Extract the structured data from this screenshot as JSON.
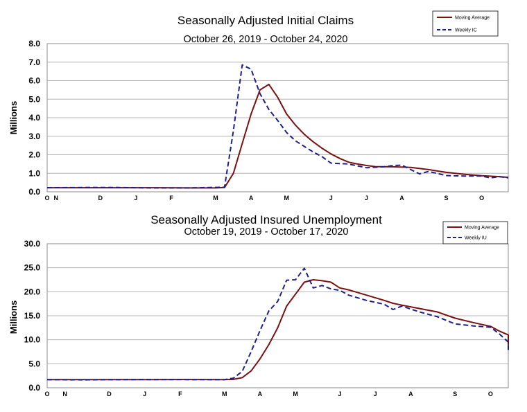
{
  "chart_data": [
    {
      "type": "line",
      "title": "Seasonally Adjusted Initial Claims",
      "subtitle": "October 26, 2019 - October 24, 2020",
      "ylabel": "Millions",
      "ylim": [
        0,
        8
      ],
      "yticks": [
        "0.0",
        "1.0",
        "2.0",
        "3.0",
        "4.0",
        "5.0",
        "6.0",
        "7.0",
        "8.0"
      ],
      "grid": true,
      "legend_position": "top-right",
      "x_range": [
        "2019-10-26",
        "2020-10-24"
      ],
      "month_ticks": [
        {
          "label": "O",
          "date": "2019-10-26"
        },
        {
          "label": "N",
          "date": "2019-11-02"
        },
        {
          "label": "D",
          "date": "2019-12-07"
        },
        {
          "label": "J",
          "date": "2020-01-04"
        },
        {
          "label": "F",
          "date": "2020-02-01"
        },
        {
          "label": "M",
          "date": "2020-03-07"
        },
        {
          "label": "A",
          "date": "2020-04-04"
        },
        {
          "label": "M",
          "date": "2020-05-02"
        },
        {
          "label": "J",
          "date": "2020-06-06"
        },
        {
          "label": "J",
          "date": "2020-07-04"
        },
        {
          "label": "A",
          "date": "2020-08-01"
        },
        {
          "label": "S",
          "date": "2020-09-05"
        },
        {
          "label": "O",
          "date": "2020-10-03"
        }
      ],
      "series": [
        {
          "name": "Moving Average",
          "color": "#7b1010",
          "style": "solid",
          "points": [
            [
              "2019-10-26",
              0.22
            ],
            [
              "2019-11-23",
              0.22
            ],
            [
              "2019-12-21",
              0.22
            ],
            [
              "2020-01-18",
              0.22
            ],
            [
              "2020-02-15",
              0.21
            ],
            [
              "2020-03-07",
              0.21
            ],
            [
              "2020-03-14",
              0.23
            ],
            [
              "2020-03-21",
              1.0
            ],
            [
              "2020-03-28",
              2.6
            ],
            [
              "2020-04-04",
              4.2
            ],
            [
              "2020-04-11",
              5.5
            ],
            [
              "2020-04-18",
              5.8
            ],
            [
              "2020-04-25",
              5.1
            ],
            [
              "2020-05-02",
              4.2
            ],
            [
              "2020-05-09",
              3.6
            ],
            [
              "2020-05-16",
              3.1
            ],
            [
              "2020-05-23",
              2.7
            ],
            [
              "2020-05-30",
              2.35
            ],
            [
              "2020-06-06",
              2.05
            ],
            [
              "2020-06-13",
              1.8
            ],
            [
              "2020-06-20",
              1.6
            ],
            [
              "2020-06-27",
              1.5
            ],
            [
              "2020-07-04",
              1.42
            ],
            [
              "2020-07-11",
              1.36
            ],
            [
              "2020-07-25",
              1.35
            ],
            [
              "2020-08-08",
              1.32
            ],
            [
              "2020-08-22",
              1.2
            ],
            [
              "2020-09-05",
              1.05
            ],
            [
              "2020-09-19",
              0.95
            ],
            [
              "2020-10-03",
              0.87
            ],
            [
              "2020-10-17",
              0.82
            ],
            [
              "2020-10-24",
              0.78
            ]
          ]
        },
        {
          "name": "Weekly IC",
          "color": "#1a1f8c",
          "style": "dashed",
          "points": [
            [
              "2019-10-26",
              0.22
            ],
            [
              "2019-11-23",
              0.23
            ],
            [
              "2019-12-21",
              0.23
            ],
            [
              "2020-01-18",
              0.21
            ],
            [
              "2020-02-15",
              0.21
            ],
            [
              "2020-03-14",
              0.25
            ],
            [
              "2020-03-21",
              3.3
            ],
            [
              "2020-03-28",
              6.85
            ],
            [
              "2020-04-04",
              6.62
            ],
            [
              "2020-04-11",
              5.3
            ],
            [
              "2020-04-18",
              4.45
            ],
            [
              "2020-04-25",
              3.85
            ],
            [
              "2020-05-02",
              3.2
            ],
            [
              "2020-05-09",
              2.75
            ],
            [
              "2020-05-16",
              2.45
            ],
            [
              "2020-05-23",
              2.15
            ],
            [
              "2020-05-30",
              1.9
            ],
            [
              "2020-06-06",
              1.55
            ],
            [
              "2020-06-20",
              1.5
            ],
            [
              "2020-07-04",
              1.3
            ],
            [
              "2020-07-18",
              1.35
            ],
            [
              "2020-07-25",
              1.42
            ],
            [
              "2020-08-01",
              1.44
            ],
            [
              "2020-08-08",
              1.2
            ],
            [
              "2020-08-15",
              0.97
            ],
            [
              "2020-08-22",
              1.1
            ],
            [
              "2020-09-05",
              0.88
            ],
            [
              "2020-09-19",
              0.85
            ],
            [
              "2020-10-03",
              0.85
            ],
            [
              "2020-10-10",
              0.75
            ],
            [
              "2020-10-17",
              0.82
            ],
            [
              "2020-10-24",
              0.75
            ]
          ]
        }
      ]
    },
    {
      "type": "line",
      "title": "Seasonally Adjusted Insured Unemployment",
      "subtitle": "October 19, 2019 - October 17, 2020",
      "ylabel": "Millions",
      "ylim": [
        0,
        30
      ],
      "yticks": [
        "0.0",
        "5.0",
        "10.0",
        "15.0",
        "20.0",
        "25.0",
        "30.0"
      ],
      "grid": true,
      "legend_position": "top-right",
      "x_range": [
        "2019-10-19",
        "2020-10-17"
      ],
      "month_ticks": [
        {
          "label": "O",
          "date": "2019-10-19"
        },
        {
          "label": "N",
          "date": "2019-11-02"
        },
        {
          "label": "D",
          "date": "2019-12-07"
        },
        {
          "label": "J",
          "date": "2020-01-04"
        },
        {
          "label": "F",
          "date": "2020-02-01"
        },
        {
          "label": "M",
          "date": "2020-03-07"
        },
        {
          "label": "A",
          "date": "2020-04-04"
        },
        {
          "label": "M",
          "date": "2020-05-02"
        },
        {
          "label": "J",
          "date": "2020-06-06"
        },
        {
          "label": "J",
          "date": "2020-07-04"
        },
        {
          "label": "A",
          "date": "2020-08-01"
        },
        {
          "label": "S",
          "date": "2020-09-05"
        },
        {
          "label": "O",
          "date": "2020-10-03"
        }
      ],
      "series": [
        {
          "name": "Moving Average",
          "color": "#7b1010",
          "style": "solid",
          "points": [
            [
              "2019-10-19",
              1.7
            ],
            [
              "2019-11-16",
              1.7
            ],
            [
              "2019-12-14",
              1.7
            ],
            [
              "2020-01-11",
              1.7
            ],
            [
              "2020-02-08",
              1.72
            ],
            [
              "2020-03-07",
              1.7
            ],
            [
              "2020-03-14",
              1.75
            ],
            [
              "2020-03-21",
              2.1
            ],
            [
              "2020-03-28",
              3.5
            ],
            [
              "2020-04-04",
              6.0
            ],
            [
              "2020-04-11",
              9.0
            ],
            [
              "2020-04-18",
              12.5
            ],
            [
              "2020-04-25",
              17.0
            ],
            [
              "2020-05-02",
              19.5
            ],
            [
              "2020-05-09",
              22.0
            ],
            [
              "2020-05-16",
              22.5
            ],
            [
              "2020-05-23",
              22.3
            ],
            [
              "2020-05-30",
              22.0
            ],
            [
              "2020-06-06",
              20.8
            ],
            [
              "2020-06-13",
              20.4
            ],
            [
              "2020-06-27",
              19.3
            ],
            [
              "2020-07-11",
              18.2
            ],
            [
              "2020-07-18",
              17.6
            ],
            [
              "2020-07-25",
              17.2
            ],
            [
              "2020-08-08",
              16.5
            ],
            [
              "2020-08-22",
              15.8
            ],
            [
              "2020-09-05",
              14.5
            ],
            [
              "2020-09-19",
              13.6
            ],
            [
              "2020-10-03",
              12.8
            ],
            [
              "2020-10-10",
              11.8
            ],
            [
              "2020-10-17",
              11.0
            ],
            [
              "2020-10-24",
              10.0
            ],
            [
              "2020-10-31",
              8.9
            ]
          ]
        },
        {
          "name": "Weekly IU",
          "color": "#1a1f8c",
          "style": "dashed",
          "points": [
            [
              "2019-10-19",
              1.7
            ],
            [
              "2019-11-16",
              1.65
            ],
            [
              "2019-12-14",
              1.7
            ],
            [
              "2020-01-11",
              1.72
            ],
            [
              "2020-02-08",
              1.7
            ],
            [
              "2020-03-07",
              1.7
            ],
            [
              "2020-03-14",
              2.0
            ],
            [
              "2020-03-21",
              3.4
            ],
            [
              "2020-03-28",
              7.5
            ],
            [
              "2020-04-04",
              11.9
            ],
            [
              "2020-04-11",
              16.0
            ],
            [
              "2020-04-18",
              18.0
            ],
            [
              "2020-04-25",
              22.4
            ],
            [
              "2020-05-02",
              22.5
            ],
            [
              "2020-05-09",
              24.9
            ],
            [
              "2020-05-16",
              20.8
            ],
            [
              "2020-05-23",
              21.3
            ],
            [
              "2020-05-30",
              20.6
            ],
            [
              "2020-06-06",
              20.3
            ],
            [
              "2020-06-13",
              19.3
            ],
            [
              "2020-06-27",
              18.2
            ],
            [
              "2020-07-11",
              17.4
            ],
            [
              "2020-07-18",
              16.3
            ],
            [
              "2020-07-25",
              17.0
            ],
            [
              "2020-08-08",
              15.8
            ],
            [
              "2020-08-22",
              14.8
            ],
            [
              "2020-09-05",
              13.3
            ],
            [
              "2020-09-19",
              12.9
            ],
            [
              "2020-10-03",
              12.6
            ],
            [
              "2020-10-10",
              11.2
            ],
            [
              "2020-10-17",
              9.5
            ],
            [
              "2020-10-24",
              8.4
            ],
            [
              "2020-10-31",
              7.8
            ]
          ]
        }
      ]
    }
  ]
}
